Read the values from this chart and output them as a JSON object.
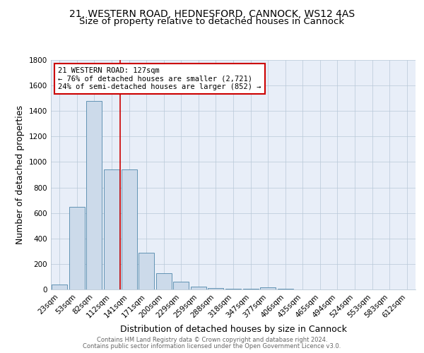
{
  "title_line1": "21, WESTERN ROAD, HEDNESFORD, CANNOCK, WS12 4AS",
  "title_line2": "Size of property relative to detached houses in Cannock",
  "xlabel": "Distribution of detached houses by size in Cannock",
  "ylabel": "Number of detached properties",
  "footnote_line1": "Contains HM Land Registry data © Crown copyright and database right 2024.",
  "footnote_line2": "Contains public sector information licensed under the Open Government Licence v3.0.",
  "bar_labels": [
    "23sqm",
    "53sqm",
    "82sqm",
    "112sqm",
    "141sqm",
    "171sqm",
    "200sqm",
    "229sqm",
    "259sqm",
    "288sqm",
    "318sqm",
    "347sqm",
    "377sqm",
    "406sqm",
    "435sqm",
    "465sqm",
    "494sqm",
    "524sqm",
    "553sqm",
    "583sqm",
    "612sqm"
  ],
  "bar_values": [
    38,
    650,
    1480,
    940,
    940,
    290,
    130,
    62,
    20,
    10,
    8,
    5,
    18,
    5,
    0,
    0,
    0,
    0,
    0,
    0,
    0
  ],
  "bar_color": "#ccdaea",
  "bar_edge_color": "#4f86aa",
  "red_line_x": 3.5,
  "annotation_text_line1": "21 WESTERN ROAD: 127sqm",
  "annotation_text_line2": "← 76% of detached houses are smaller (2,721)",
  "annotation_text_line3": "24% of semi-detached houses are larger (852) →",
  "annotation_box_color": "#ffffff",
  "annotation_box_edge": "#cc0000",
  "ylim": [
    0,
    1800
  ],
  "yticks": [
    0,
    200,
    400,
    600,
    800,
    1000,
    1200,
    1400,
    1600,
    1800
  ],
  "plot_bg_color": "#e8eef8",
  "title_fontsize": 10,
  "subtitle_fontsize": 9.5,
  "axis_label_fontsize": 9,
  "tick_fontsize": 7.5,
  "footnote_fontsize": 6,
  "annotation_fontsize": 7.5
}
